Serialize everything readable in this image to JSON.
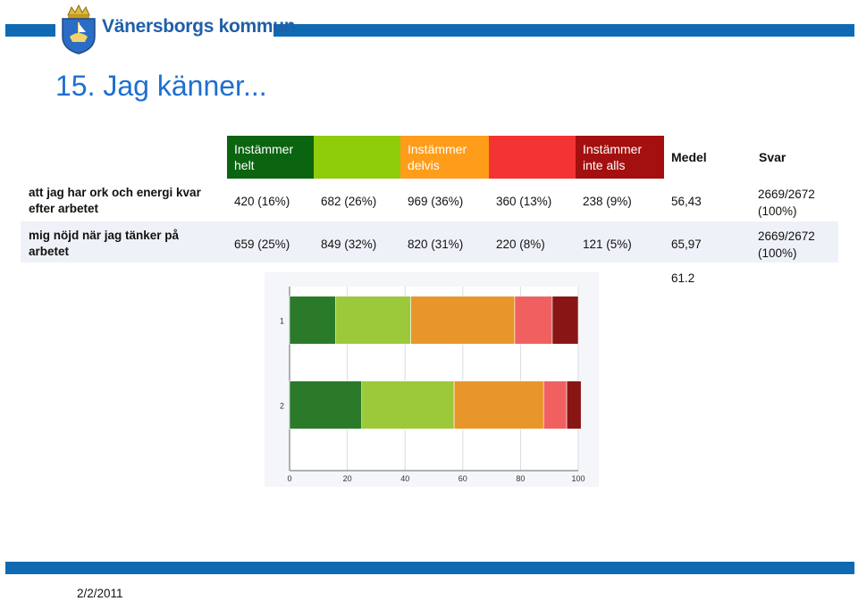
{
  "header": {
    "brand": "Vänersborgs kommun"
  },
  "title": "15. Jag känner...",
  "columns": [
    {
      "label1": "Instämmer",
      "label2": "helt",
      "color": "#0a6410"
    },
    {
      "label1": "",
      "label2": "",
      "color": "#8fcc0a"
    },
    {
      "label1": "Instämmer",
      "label2": "delvis",
      "color": "#ff9d1a"
    },
    {
      "label1": "",
      "label2": "",
      "color": "#f43333"
    },
    {
      "label1": "Instämmer",
      "label2": "inte alls",
      "color": "#a3100f"
    }
  ],
  "col_medel": "Medel",
  "col_svar": "Svar",
  "rows": [
    {
      "label": "att jag har ork och energi kvar efter arbetet",
      "c1": "420 (16%)",
      "c2": "682 (26%)",
      "c3": "969 (36%)",
      "c4": "360 (13%)",
      "c5": "238 (9%)",
      "medel": "56,43",
      "svar1": "2669/2672",
      "svar2": "(100%)"
    },
    {
      "label": "mig nöjd när jag tänker på arbetet",
      "c1": "659 (25%)",
      "c2": "849 (32%)",
      "c3": "820 (31%)",
      "c4": "220 (8%)",
      "c5": "121 (5%)",
      "medel": "65,97",
      "svar1": "2669/2672",
      "svar2": "(100%)"
    }
  ],
  "average": "61.2",
  "chart_data": {
    "type": "bar",
    "orientation": "horizontal",
    "stacked": true,
    "categories": [
      "1",
      "2"
    ],
    "xlim": [
      0,
      100
    ],
    "xticks": [
      "0",
      "20",
      "40",
      "60",
      "80",
      "100"
    ],
    "series": [
      {
        "values": [
          16,
          25
        ],
        "color": "#2a7a2a"
      },
      {
        "values": [
          26,
          32
        ],
        "color": "#9cc93a"
      },
      {
        "values": [
          36,
          31
        ],
        "color": "#e8962a"
      },
      {
        "values": [
          13,
          8
        ],
        "color": "#f06060"
      },
      {
        "values": [
          9,
          5
        ],
        "color": "#8a1515"
      }
    ]
  },
  "footer": {
    "date": "2/2/2011"
  }
}
